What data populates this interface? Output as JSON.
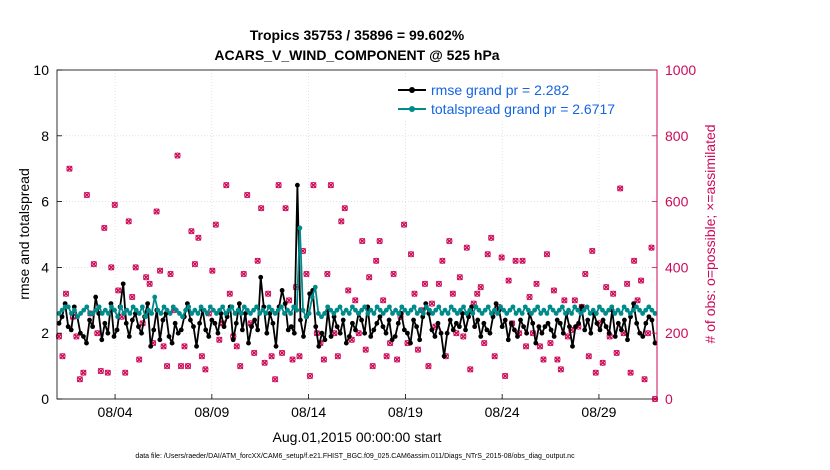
{
  "chart_data": {
    "type": "line",
    "title": [
      "Tropics 35753 / 35896 = 99.602%",
      "ACARS_V_WIND_COMPONENT @ 525 hPa"
    ],
    "xlabel": "Aug.01,2015 00:00:00 start",
    "ylabel": "rmse and totalspread",
    "y2label": "# of obs: o=possible; ×=assimilated",
    "x_ticks": [
      "08/04",
      "08/09",
      "08/14",
      "08/19",
      "08/24",
      "08/29"
    ],
    "x_tick_days": [
      4,
      9,
      14,
      19,
      24,
      29
    ],
    "xlim_days": [
      1,
      32
    ],
    "ylim": [
      0,
      10
    ],
    "y_ticks": [
      "0",
      "2",
      "4",
      "6",
      "8",
      "10"
    ],
    "y2lim": [
      0,
      1000
    ],
    "y2_ticks": [
      "0",
      "200",
      "400",
      "600",
      "800",
      "1000"
    ],
    "legend_position": "top-right",
    "colors": {
      "rmse": "#000000",
      "spread": "#008b8b",
      "obs": "#cc0a58"
    },
    "series": [
      {
        "name": "rmse grand pr = 2.282",
        "axis": "left",
        "values": [
          2.3,
          2.5,
          2.9,
          2.2,
          2.1,
          2.8,
          2.5,
          2.0,
          1.9,
          1.7,
          2.4,
          2.2,
          3.1,
          2.6,
          1.8,
          2.3,
          2.0,
          2.9,
          1.9,
          2.1,
          2.8,
          3.5,
          2.3,
          1.9,
          2.4,
          2.6,
          2.2,
          2.0,
          2.5,
          2.9,
          1.6,
          2.1,
          2.7,
          1.8,
          2.4,
          2.6,
          1.9,
          1.7,
          2.3,
          2.0,
          2.1,
          2.5,
          2.9,
          2.4,
          2.2,
          1.6,
          2.3,
          2.7,
          2.1,
          1.9,
          2.4,
          2.3,
          2.0,
          2.6,
          2.2,
          2.5,
          2.8,
          1.8,
          2.3,
          2.9,
          2.1,
          2.6,
          1.7,
          2.2,
          2.4,
          2.1,
          3.7,
          2.8,
          2.0,
          2.6,
          2.3,
          1.6,
          2.8,
          3.3,
          2.9,
          2.1,
          2.2,
          2.0,
          6.5,
          2.4,
          1.9,
          2.5,
          3.2,
          3.3,
          2.2,
          1.6,
          2.0,
          1.8,
          2.7,
          1.9,
          2.5,
          2.2,
          2.0,
          2.4,
          1.7,
          1.9,
          2.3,
          2.1,
          2.6,
          2.4,
          2.0,
          2.8,
          1.9,
          2.1,
          2.3,
          2.5,
          2.2,
          2.0,
          2.4,
          1.8,
          1.9,
          2.3,
          2.6,
          2.1,
          2.0,
          1.7,
          2.4,
          2.2,
          1.8,
          2.5,
          2.9,
          2.6,
          2.1,
          1.9,
          2.3,
          2.0,
          1.3,
          2.0,
          2.4,
          2.1,
          2.3,
          2.2,
          2.6,
          2.1,
          2.5,
          2.8,
          2.2,
          2.4,
          1.9,
          2.3,
          2.1,
          2.0,
          2.5,
          2.9,
          2.7,
          2.2,
          2.4,
          1.8,
          2.3,
          2.1,
          1.9,
          2.4,
          2.2,
          2.0,
          2.6,
          2.3,
          1.7,
          2.2,
          2.0,
          2.2,
          2.3,
          2.1,
          1.9,
          2.4,
          2.3,
          2.0,
          2.6,
          2.2,
          1.6,
          2.2,
          2.3,
          2.8,
          2.1,
          2.4,
          2.0,
          2.6,
          2.3,
          2.1,
          2.4,
          2.2,
          2.0,
          2.7,
          1.9,
          2.3,
          2.1,
          2.4,
          1.8,
          2.5,
          2.9,
          2.3,
          2.0,
          1.9,
          2.3,
          2.5,
          2.4,
          1.7
        ]
      },
      {
        "name": "totalspread grand pr = 2.6717",
        "axis": "left",
        "values": [
          2.6,
          2.7,
          2.8,
          2.8,
          2.6,
          2.7,
          2.5,
          2.6,
          2.7,
          2.8,
          2.6,
          2.6,
          2.7,
          2.8,
          2.6,
          2.7,
          2.6,
          2.8,
          2.7,
          2.5,
          2.8,
          2.6,
          2.7,
          2.6,
          2.8,
          2.7,
          2.6,
          2.8,
          2.5,
          2.7,
          2.6,
          3.1,
          2.7,
          2.6,
          2.8,
          2.7,
          2.6,
          2.8,
          2.7,
          2.6,
          2.5,
          2.7,
          2.8,
          2.6,
          2.7,
          2.6,
          2.8,
          2.7,
          2.6,
          2.8,
          2.7,
          2.6,
          2.7,
          2.8,
          2.6,
          2.7,
          2.8,
          2.6,
          2.7,
          2.6,
          2.8,
          2.7,
          2.6,
          2.7,
          2.8,
          2.6,
          2.7,
          2.6,
          2.8,
          2.7,
          2.6,
          2.7,
          2.8,
          2.6,
          2.7,
          2.6,
          2.8,
          2.7,
          5.2,
          2.7,
          2.5,
          2.6,
          3.1,
          3.4,
          2.6,
          2.5,
          2.6,
          2.8,
          2.7,
          2.6,
          2.7,
          2.8,
          2.6,
          2.7,
          2.6,
          2.8,
          2.7,
          2.6,
          2.7,
          2.8,
          2.6,
          2.7,
          2.6,
          2.8,
          2.7,
          2.6,
          2.7,
          2.8,
          2.6,
          2.7,
          2.6,
          2.8,
          2.7,
          2.6,
          2.7,
          2.8,
          2.6,
          2.7,
          2.6,
          2.8,
          2.7,
          2.6,
          2.7,
          2.8,
          2.6,
          2.7,
          2.6,
          2.8,
          2.7,
          2.6,
          2.7,
          2.8,
          2.6,
          2.7,
          2.6,
          2.8,
          2.7,
          2.6,
          2.7,
          2.8,
          2.6,
          2.7,
          2.6,
          2.8,
          2.7,
          2.6,
          2.7,
          2.8,
          2.6,
          2.7,
          2.6,
          2.8,
          2.7,
          2.6,
          2.7,
          2.8,
          2.6,
          2.7,
          2.6,
          2.8,
          2.7,
          2.6,
          2.7,
          2.8,
          2.6,
          2.7,
          2.6,
          2.8,
          2.7,
          2.6,
          2.7,
          2.8,
          2.6,
          2.7,
          2.6,
          2.8,
          2.7,
          2.6,
          2.7,
          2.8,
          2.6,
          2.7,
          2.6,
          2.8,
          2.7,
          2.6,
          2.7,
          2.8,
          2.7,
          2.6,
          2.7,
          2.8,
          2.7,
          2.6
        ]
      }
    ],
    "obs_possible": [
      190,
      130,
      320,
      700,
      250,
      190,
      60,
      80,
      620,
      260,
      410,
      200,
      85,
      520,
      80,
      400,
      590,
      330,
      250,
      80,
      540,
      310,
      400,
      120,
      230,
      370,
      350,
      170,
      570,
      390,
      160,
      100,
      380,
      270,
      740,
      100,
      160,
      100,
      510,
      410,
      490,
      130,
      90,
      260,
      390,
      530,
      180,
      230,
      650,
      320,
      190,
      160,
      100,
      380,
      620,
      230,
      140,
      420,
      580,
      110,
      320,
      130,
      60,
      650,
      140,
      580,
      300,
      120,
      340,
      130,
      450,
      380,
      70,
      650,
      200,
      170,
      120,
      380,
      650,
      200,
      130,
      540,
      580,
      330,
      180,
      300,
      200,
      480,
      150,
      370,
      100,
      420,
      480,
      300,
      130,
      170,
      380,
      120,
      250,
      530,
      170,
      440,
      320,
      150,
      270,
      350,
      100,
      290,
      220,
      350,
      420,
      130,
      480,
      320,
      200,
      370,
      190,
      460,
      90,
      290,
      320,
      340,
      170,
      440,
      490,
      130,
      280,
      430,
      70,
      360,
      230,
      420,
      200,
      420,
      160,
      310,
      200,
      350,
      160,
      120,
      440,
      170,
      330,
      120,
      90,
      300,
      190,
      210,
      300,
      220,
      280,
      380,
      130,
      450,
      80,
      230,
      110,
      340,
      190,
      320,
      140,
      640,
      200,
      350,
      80,
      420,
      300,
      360,
      60,
      200,
      460,
      0
    ],
    "obs_assimilated": [
      190,
      130,
      320,
      700,
      250,
      190,
      60,
      80,
      620,
      260,
      410,
      200,
      85,
      520,
      80,
      400,
      590,
      330,
      250,
      80,
      540,
      310,
      400,
      120,
      230,
      370,
      350,
      170,
      570,
      390,
      160,
      100,
      380,
      270,
      740,
      100,
      160,
      100,
      510,
      410,
      490,
      130,
      90,
      260,
      390,
      530,
      180,
      230,
      650,
      320,
      190,
      160,
      100,
      380,
      620,
      230,
      140,
      420,
      580,
      110,
      320,
      130,
      60,
      650,
      140,
      580,
      300,
      120,
      340,
      130,
      450,
      380,
      70,
      650,
      200,
      170,
      120,
      380,
      650,
      200,
      130,
      540,
      580,
      330,
      180,
      300,
      200,
      480,
      150,
      370,
      100,
      420,
      480,
      300,
      130,
      170,
      380,
      120,
      250,
      530,
      170,
      440,
      320,
      150,
      270,
      350,
      100,
      290,
      220,
      350,
      420,
      130,
      480,
      320,
      200,
      370,
      190,
      460,
      90,
      290,
      320,
      340,
      170,
      440,
      490,
      130,
      280,
      430,
      70,
      360,
      230,
      420,
      200,
      420,
      160,
      310,
      200,
      350,
      160,
      120,
      440,
      170,
      330,
      120,
      90,
      300,
      190,
      210,
      300,
      220,
      280,
      380,
      130,
      450,
      80,
      230,
      110,
      340,
      190,
      320,
      140,
      640,
      200,
      350,
      80,
      420,
      300,
      360,
      60,
      200,
      460,
      0
    ],
    "note": "data file: /Users/raeder/DAI/ATM_forcXX/CAM6_setup/f.e21.FHIST_BGC.f09_025.CAM6assim.011/Diags_NTrS_2015-08/obs_diag_output.nc"
  }
}
